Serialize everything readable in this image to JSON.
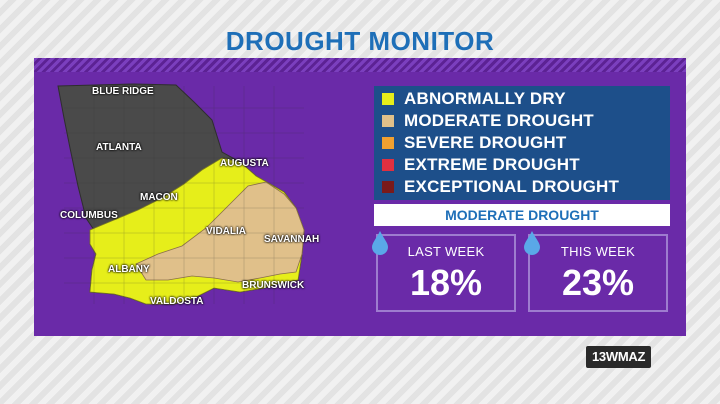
{
  "title": "DROUGHT MONITOR",
  "map": {
    "cities": [
      {
        "name": "BLUE RIDGE"
      },
      {
        "name": "ATLANTA"
      },
      {
        "name": "AUGUSTA"
      },
      {
        "name": "MACON"
      },
      {
        "name": "COLUMBUS"
      },
      {
        "name": "VIDALIA"
      },
      {
        "name": "SAVANNAH"
      },
      {
        "name": "ALBANY"
      },
      {
        "name": "BRUNSWICK"
      },
      {
        "name": "VALDOSTA"
      }
    ]
  },
  "legend": {
    "items": [
      {
        "label": "ABNORMALLY DRY",
        "color": "#e6ee1a"
      },
      {
        "label": "MODERATE DROUGHT",
        "color": "#e0c08a"
      },
      {
        "label": "SEVERE DROUGHT",
        "color": "#f0a030"
      },
      {
        "label": "EXTREME DROUGHT",
        "color": "#e03040"
      },
      {
        "label": "EXCEPTIONAL DROUGHT",
        "color": "#7a1a1a"
      }
    ]
  },
  "category": "MODERATE DROUGHT",
  "stats": {
    "last_week": {
      "label": "LAST WEEK",
      "value": "18%"
    },
    "this_week": {
      "label": "THIS WEEK",
      "value": "23%"
    }
  },
  "logo": "13WMAZ",
  "colors": {
    "panel": "#6a2aa8",
    "no_drought": "#4a4a4a",
    "abnormally_dry": "#e6ee1a",
    "moderate_drought": "#e0c08a",
    "title": "#1e6fb8"
  }
}
